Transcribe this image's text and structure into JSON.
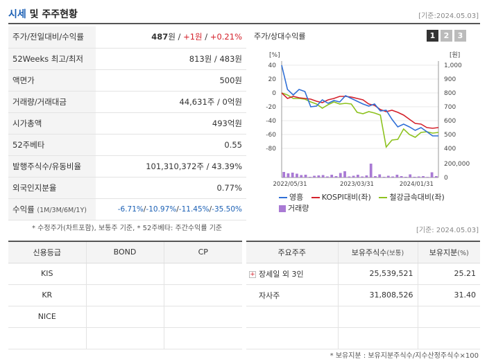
{
  "header": {
    "title_part1": "시세",
    "title_part2": "및 주주현황",
    "date": "[기준:2024.05.03]"
  },
  "stats": {
    "price": {
      "label": "주가/전일대비/수익률",
      "price": "487",
      "unit": "원",
      "sep1": " / ",
      "change": "+1원",
      "sep2": " / ",
      "pct": "+0.21%"
    },
    "week52": {
      "label": "52Weeks 최고/최저",
      "value": "813원 / 483원"
    },
    "par": {
      "label": "액면가",
      "value": "500원"
    },
    "volume": {
      "label": "거래량/거래대금",
      "value": "44,631주 / 0억원"
    },
    "mcap": {
      "label": "시가총액",
      "value": "493억원"
    },
    "beta": {
      "label": "52주베타",
      "value": "0.55"
    },
    "shares": {
      "label": "발행주식수/유동비율",
      "value": "101,310,372주 / 43.39%"
    },
    "foreign": {
      "label": "외국인지분율",
      "value": "0.77%"
    },
    "returns": {
      "label": "수익률",
      "sublabel": "(1M/3M/6M/1Y)",
      "r1": "-6.71%",
      "r2": "-10.97%",
      "r3": "-11.45%",
      "r4": "-35.50%",
      "sep": "/"
    }
  },
  "note1": "* 수정주가(차트포함), 보통주 기준, * 52주베타: 주간수익률 기준",
  "date2": "[기준: 2024.05.03]",
  "chart_panel": {
    "title": "주가/상대수익률",
    "tabs": [
      "1",
      "2",
      "3"
    ]
  },
  "chart_data": {
    "type": "line",
    "left_unit": "[%]",
    "right_unit": "[원]",
    "y_left": {
      "min": -80,
      "max": 40,
      "ticks": [
        "40",
        "20",
        "0",
        "-20",
        "-40",
        "-60",
        "-80"
      ]
    },
    "y_right": {
      "min": 400,
      "max": 1000,
      "ticks": [
        "1,000",
        "900",
        "800",
        "700",
        "600",
        "500",
        "400"
      ]
    },
    "vol_axis": {
      "max": 200000,
      "ticks": [
        "200,000",
        "0"
      ]
    },
    "x_ticks": [
      "2022/05/31",
      "2023/03/31",
      "2024/01/31"
    ],
    "series": [
      {
        "name": "영흥",
        "color": "#2f6fd6",
        "values": [
          40,
          5,
          -3,
          5,
          2,
          -20,
          -19,
          -10,
          -15,
          -11,
          -13,
          -4,
          -8,
          -12,
          -16,
          -19,
          -16,
          -26,
          -25,
          -38,
          -49,
          -45,
          -49,
          -54,
          -50,
          -56,
          -62,
          -62
        ]
      },
      {
        "name": "KOSPI대비(좌)",
        "color": "#d4212b",
        "values": [
          0,
          -8,
          -5,
          -7,
          -8,
          -9,
          -12,
          -14,
          -10,
          -8,
          -5,
          -5,
          -6,
          -8,
          -10,
          -16,
          -18,
          -24,
          -27,
          -25,
          -28,
          -32,
          -38,
          -44,
          -45,
          -50,
          -51,
          -50
        ]
      },
      {
        "name": "철강금속대비(좌)",
        "color": "#8dc21f",
        "values": [
          0,
          -3,
          -8,
          -8,
          -9,
          -13,
          -16,
          -22,
          -17,
          -13,
          -16,
          -15,
          -16,
          -28,
          -30,
          -27,
          -29,
          -32,
          -78,
          -68,
          -67,
          -52,
          -60,
          -64,
          -57,
          -56,
          -58,
          -57
        ]
      }
    ],
    "volume": {
      "name": "거래량",
      "color": "#a97ad4",
      "values": [
        80000,
        60000,
        70000,
        55000,
        35000,
        40000,
        10000,
        25000,
        30000,
        35000,
        15000,
        40000,
        20000,
        65000,
        90000,
        15000,
        25000,
        40000,
        15000,
        30000,
        200000,
        20000,
        45000,
        10000,
        25000,
        15000,
        40000,
        20000,
        10000,
        45000,
        10000,
        15000,
        20000,
        8000,
        75000,
        20000
      ]
    },
    "grid": true,
    "legend_position": "bottom"
  },
  "credit": {
    "headers": [
      "신용등급",
      "BOND",
      "CP"
    ],
    "rows": [
      [
        "KIS",
        "",
        ""
      ],
      [
        "KR",
        "",
        ""
      ],
      [
        "NICE",
        "",
        ""
      ],
      [
        "",
        "",
        ""
      ]
    ]
  },
  "holders": {
    "headers": [
      "주요주주",
      "보유주식수",
      "(보통)",
      "보유지분",
      "(%)"
    ],
    "rows": [
      {
        "name": "장세일 외 3인",
        "shares": "25,539,521",
        "pct": "25.21",
        "has_icon": true
      },
      {
        "name": "자사주",
        "shares": "31,808,526",
        "pct": "31.40",
        "has_icon": false
      }
    ]
  },
  "note2": "* 보유지분 : 보유지분주식수/지수산정주식수×100"
}
